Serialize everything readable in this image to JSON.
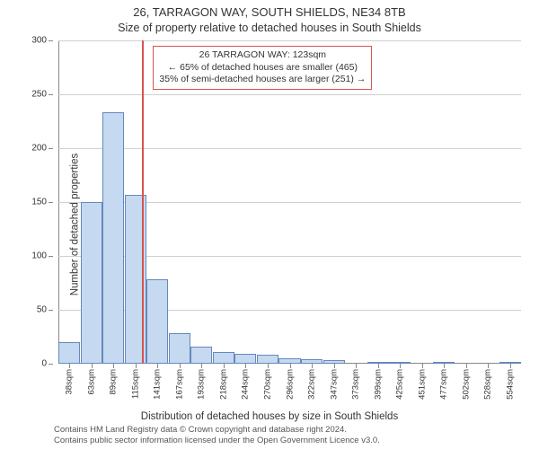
{
  "title": "26, TARRAGON WAY, SOUTH SHIELDS, NE34 8TB",
  "subtitle": "Size of property relative to detached houses in South Shields",
  "yaxis_label": "Number of detached properties",
  "xaxis_label": "Distribution of detached houses by size in South Shields",
  "credits_line1": "Contains HM Land Registry data © Crown copyright and database right 2024.",
  "credits_line2": "Contains public sector information licensed under the Open Government Licence v3.0.",
  "chart": {
    "type": "histogram",
    "ylim": [
      0,
      300
    ],
    "ytick_step": 50,
    "bar_fill": "#c5d9f1",
    "bar_stroke": "#6688bb",
    "grid_color": "#d0d0d0",
    "background": "#ffffff",
    "refline_color": "#d9534f",
    "refline_value": 123,
    "categories": [
      "38sqm",
      "63sqm",
      "89sqm",
      "115sqm",
      "141sqm",
      "167sqm",
      "193sqm",
      "218sqm",
      "244sqm",
      "270sqm",
      "296sqm",
      "322sqm",
      "347sqm",
      "373sqm",
      "399sqm",
      "425sqm",
      "451sqm",
      "477sqm",
      "502sqm",
      "528sqm",
      "554sqm"
    ],
    "values": [
      20,
      150,
      233,
      157,
      78,
      28,
      16,
      11,
      9,
      8,
      5,
      4,
      3,
      0,
      1,
      1,
      0,
      1,
      0,
      0,
      1
    ],
    "bar_width_ratio": 0.98,
    "title_fontsize": 13,
    "subtitle_fontsize": 12.5,
    "label_fontsize": 11.5,
    "tick_fontsize": 10
  },
  "annotation": {
    "line1": "26 TARRAGON WAY: 123sqm",
    "line2": "← 65% of detached houses are smaller (465)",
    "line3": "35% of semi-detached houses are larger (251) →",
    "border_color": "#d9534f",
    "fontsize": 10.5
  }
}
